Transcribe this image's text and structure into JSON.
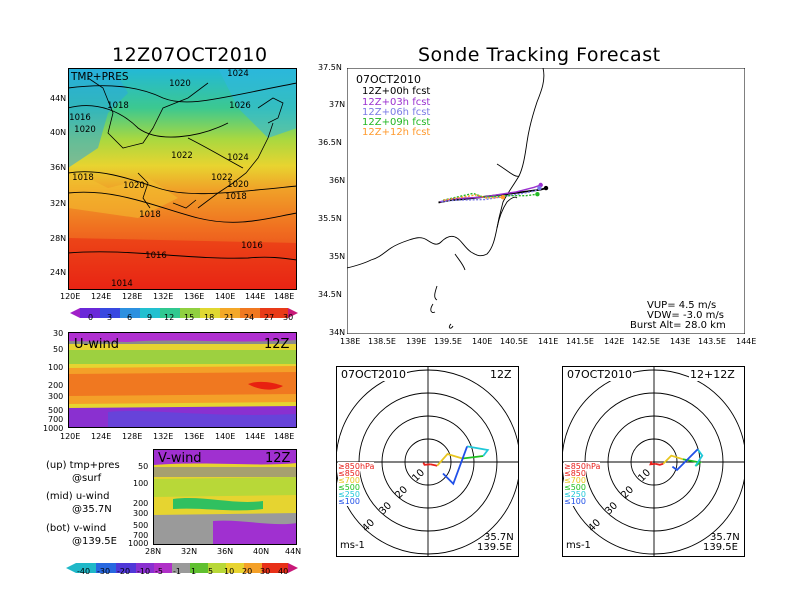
{
  "left_title": "12Z07OCT2010",
  "right_title": "Sonde Tracking Forecast",
  "colors": {
    "obs": "#000000",
    "h03": "#9b30d0",
    "h06": "#7a7ae6",
    "h09": "#22b822",
    "h12": "#ff9a2e",
    "lvl850": "#e8201c",
    "lvl700": "#e8c620",
    "lvl500": "#20c020",
    "lvl250": "#20c8d8",
    "lvl100": "#2050e8"
  },
  "top_map": {
    "label": "TMP+PRES",
    "lat_ticks": [
      "44N",
      "40N",
      "36N",
      "32N",
      "28N",
      "24N"
    ],
    "lon_ticks": [
      "120E",
      "124E",
      "128E",
      "132E",
      "136E",
      "140E",
      "144E",
      "148E"
    ],
    "isobar_labels": [
      "1024",
      "1020",
      "1018",
      "1016",
      "1020",
      "1026",
      "1022",
      "1024",
      "1018",
      "1020",
      "1022",
      "1020",
      "1018",
      "1018",
      "1016",
      "1016",
      "1014"
    ],
    "colorbar_ticks": [
      "0",
      "3",
      "6",
      "9",
      "12",
      "15",
      "18",
      "21",
      "24",
      "27",
      "30"
    ]
  },
  "uwind": {
    "label": "U-wind",
    "time": "12Z",
    "p_ticks": [
      "30",
      "50",
      "100",
      "200",
      "300",
      "500",
      "700",
      "1000"
    ],
    "lon_ticks": [
      "120E",
      "124E",
      "128E",
      "132E",
      "136E",
      "140E",
      "144E",
      "148E"
    ]
  },
  "vwind": {
    "label": "V-wind",
    "time": "12Z",
    "p_ticks": [
      "50",
      "100",
      "200",
      "300",
      "500",
      "700",
      "1000"
    ],
    "lat_ticks": [
      "28N",
      "32N",
      "36N",
      "40N",
      "44N"
    ],
    "colorbar_ticks": [
      "-40",
      "-30",
      "-20",
      "-10",
      "-5",
      "-1",
      "1",
      "5",
      "10",
      "20",
      "30",
      "40"
    ]
  },
  "legend_notes": [
    {
      "a": "(up) tmp+pres",
      "b": "@surf"
    },
    {
      "a": "(mid) u-wind",
      "b": "@35.7N"
    },
    {
      "a": "(bot) v-wind",
      "b": "@139.5E"
    }
  ],
  "track_map": {
    "date": "07OCT2010",
    "forecasts": [
      "12Z+00h fcst",
      "12Z+03h fcst",
      "12Z+06h fcst",
      "12Z+09h fcst",
      "12Z+12h fcst"
    ],
    "lat_ticks": [
      "37.5N",
      "37N",
      "36.5N",
      "36N",
      "35.5N",
      "35N",
      "34.5N",
      "34N"
    ],
    "lon_ticks": [
      "138E",
      "138.5E",
      "139E",
      "139.5E",
      "140E",
      "140.5E",
      "141E",
      "141.5E",
      "142E",
      "142.5E",
      "143E",
      "143.5E",
      "144E"
    ],
    "vup": "VUP= 4.5 m/s",
    "vdw": "VDW= -3.0 m/s",
    "burst": "Burst Alt= 28.0 km"
  },
  "hodo_left": {
    "date": "07OCT2010",
    "time": "12Z",
    "lat": "35.7N",
    "lon": "139.5E",
    "unit": "ms-1"
  },
  "hodo_right": {
    "date": "07OCT2010",
    "time": "12+12Z",
    "lat": "35.7N",
    "lon": "139.5E",
    "unit": "ms-1"
  },
  "hodo_ring_labels": [
    "10",
    "20",
    "30",
    "40"
  ],
  "hodo_levels": [
    "≥850hPa",
    "≤850",
    "≤700",
    "≤500",
    "≤250",
    "≤100"
  ],
  "chart_data": [
    {
      "type": "line",
      "title": "Sonde Tracking Forecast",
      "xlabel": "",
      "ylabel": "",
      "xlim": [
        138,
        144
      ],
      "ylim": [
        34,
        37.5
      ],
      "series": [
        {
          "name": "12Z+00h fcst",
          "x": [
            139.38,
            139.55,
            139.7,
            140.02,
            140.3,
            140.58,
            140.92,
            141.0
          ],
          "y": [
            35.73,
            35.76,
            35.77,
            35.8,
            35.83,
            35.86,
            35.9,
            35.92
          ]
        },
        {
          "name": "12Z+03h fcst",
          "x": [
            139.4,
            139.6,
            140.05,
            140.25,
            140.55,
            140.82,
            140.92
          ],
          "y": [
            35.74,
            35.78,
            35.8,
            35.83,
            35.87,
            35.93,
            35.96
          ]
        },
        {
          "name": "12Z+06h fcst",
          "x": [
            139.42,
            139.62,
            140.08,
            140.3,
            140.58,
            140.83,
            140.9
          ],
          "y": [
            35.74,
            35.76,
            35.77,
            35.8,
            35.84,
            35.88,
            35.92
          ]
        },
        {
          "name": "12Z+09h fcst",
          "x": [
            139.45,
            139.9,
            140.06,
            140.4,
            140.7,
            140.87
          ],
          "y": [
            35.76,
            35.85,
            35.8,
            35.82,
            35.82,
            35.84
          ]
        },
        {
          "name": "12Z+12h fcst",
          "x": [
            139.46,
            139.95,
            140.1,
            140.35
          ],
          "y": [
            35.76,
            35.83,
            35.79,
            35.8
          ]
        }
      ]
    },
    {
      "type": "line",
      "title": "12Z",
      "series": [
        {
          "name": "≥850hPa",
          "x": [
            -2,
            -1.5,
            1
          ],
          "y": [
            -0.3,
            -1.2,
            -1.0
          ]
        },
        {
          "name": "≤850",
          "x": [
            1,
            3,
            4
          ],
          "y": [
            -1.0,
            -1.4,
            -1.6
          ]
        },
        {
          "name": "≤700",
          "x": [
            4,
            8.5,
            15
          ],
          "y": [
            -1.6,
            3.5,
            1.5
          ]
        },
        {
          "name": "≤500",
          "x": [
            15,
            24
          ],
          "y": [
            1.5,
            2.6
          ]
        },
        {
          "name": "≤250",
          "x": [
            24,
            26,
            17
          ],
          "y": [
            2.6,
            5.2,
            6.8
          ]
        },
        {
          "name": "≤100",
          "x": [
            17,
            11,
            6.5
          ],
          "y": [
            6.8,
            -9.5,
            -5.0
          ]
        }
      ]
    },
    {
      "type": "line",
      "title": "12+12Z",
      "series": [
        {
          "name": "≥850hPa",
          "x": [
            -1,
            -1.5,
            0.5
          ],
          "y": [
            0.3,
            -1.0,
            -0.8
          ]
        },
        {
          "name": "≤850",
          "x": [
            0.5,
            2.5,
            4
          ],
          "y": [
            -0.8,
            -1.2,
            -0.8
          ]
        },
        {
          "name": "≤700",
          "x": [
            4,
            7.5,
            12.5
          ],
          "y": [
            -0.8,
            2.8,
            1.2
          ]
        },
        {
          "name": "≤500",
          "x": [
            12.5,
            20,
            18
          ],
          "y": [
            1.2,
            -0.2,
            -1.8
          ]
        },
        {
          "name": "≤250",
          "x": [
            18,
            21,
            19
          ],
          "y": [
            -1.8,
            2.8,
            5.5
          ]
        },
        {
          "name": "≤100",
          "x": [
            19,
            10,
            8
          ],
          "y": [
            5.5,
            -3.5,
            -2.0
          ]
        }
      ]
    }
  ]
}
